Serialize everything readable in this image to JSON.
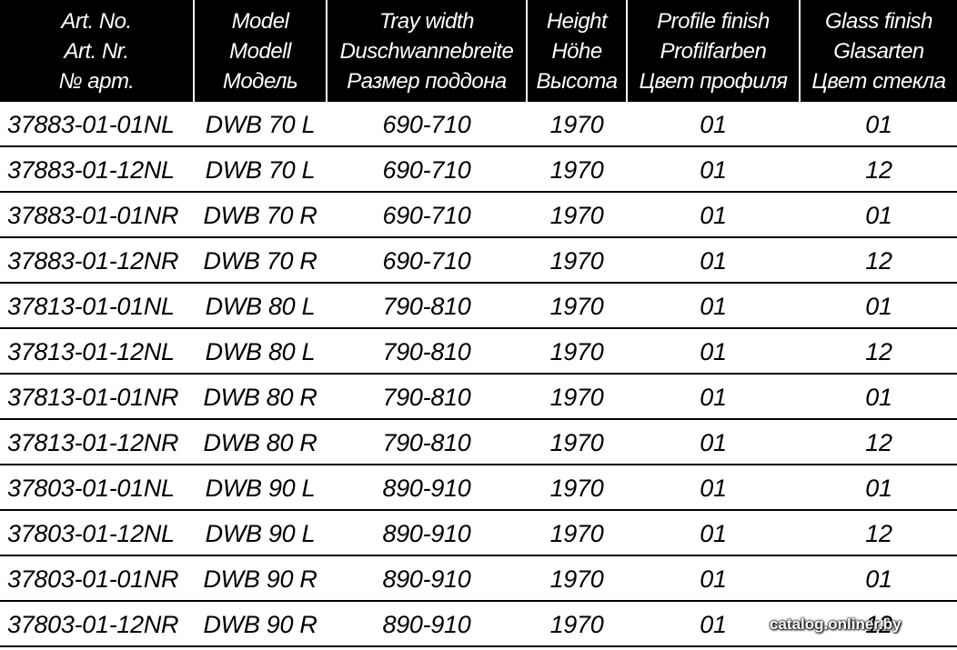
{
  "table": {
    "header": [
      [
        "Art. No.",
        "Art. Nr.",
        "№ арт."
      ],
      [
        "Model",
        "Modell",
        "Модель"
      ],
      [
        "Tray width",
        "Duschwannebreite",
        "Размер поддона"
      ],
      [
        "Height",
        "Höhe",
        "Высота"
      ],
      [
        "Profile finish",
        "Profilfarben",
        "Цвет профиля"
      ],
      [
        "Glass finish",
        "Glasarten",
        "Цвет стекла"
      ]
    ],
    "rows": [
      [
        "37883-01-01NL",
        "DWB 70 L",
        "690-710",
        "1970",
        "01",
        "01"
      ],
      [
        "37883-01-12NL",
        "DWB 70 L",
        "690-710",
        "1970",
        "01",
        "12"
      ],
      [
        "37883-01-01NR",
        "DWB 70 R",
        "690-710",
        "1970",
        "01",
        "01"
      ],
      [
        "37883-01-12NR",
        "DWB 70 R",
        "690-710",
        "1970",
        "01",
        "12"
      ],
      [
        "37813-01-01NL",
        "DWB 80 L",
        "790-810",
        "1970",
        "01",
        "01"
      ],
      [
        "37813-01-12NL",
        "DWB 80 L",
        "790-810",
        "1970",
        "01",
        "12"
      ],
      [
        "37813-01-01NR",
        "DWB 80 R",
        "790-810",
        "1970",
        "01",
        "01"
      ],
      [
        "37813-01-12NR",
        "DWB 80 R",
        "790-810",
        "1970",
        "01",
        "12"
      ],
      [
        "37803-01-01NL",
        "DWB 90 L",
        "890-910",
        "1970",
        "01",
        "01"
      ],
      [
        "37803-01-12NL",
        "DWB 90 L",
        "890-910",
        "1970",
        "01",
        "12"
      ],
      [
        "37803-01-01NR",
        "DWB 90 R",
        "890-910",
        "1970",
        "01",
        "01"
      ],
      [
        "37803-01-12NR",
        "DWB 90 R",
        "890-910",
        "1970",
        "01",
        "12"
      ]
    ]
  },
  "watermark": "catalog.onliner.by"
}
